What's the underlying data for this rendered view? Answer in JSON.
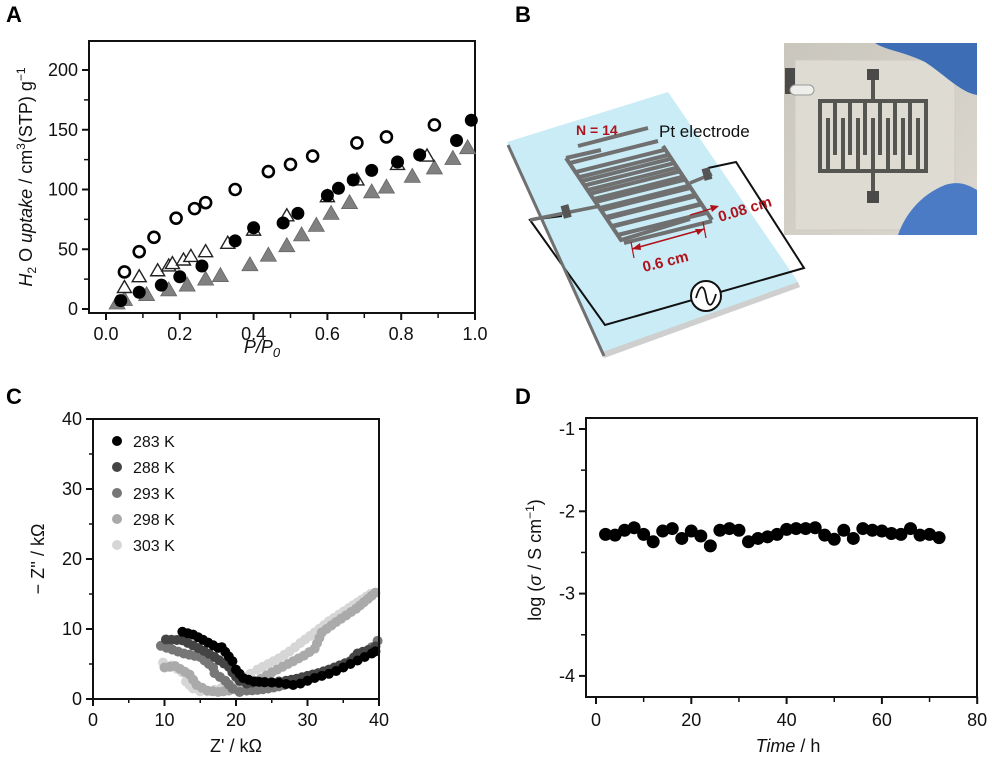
{
  "panels": {
    "A": {
      "letter": "A"
    },
    "B": {
      "letter": "B",
      "n_label": "N = 14",
      "electrode_label": "Pt electrode",
      "gap_label": "0.08 cm",
      "length_label": "0.6 cm",
      "accent_color": "#b0121b",
      "substrate_color": "#c9ecf6"
    },
    "C": {
      "letter": "C"
    },
    "D": {
      "letter": "D"
    }
  },
  "chart_data": [
    {
      "id": "A",
      "type": "scatter",
      "title": "",
      "xlabel": "P/P0",
      "ylabel": "H2O uptake / cm3(STP) g-1",
      "xlim": [
        -0.03,
        1.0
      ],
      "ylim": [
        -5,
        225
      ],
      "xticks": [
        "0.0",
        "0.2",
        "0.4",
        "0.6",
        "0.8",
        "1.0"
      ],
      "xtick_values": [
        0.0,
        0.2,
        0.4,
        0.6,
        0.8,
        1.0
      ],
      "yticks": [
        "0",
        "50",
        "100",
        "150",
        "200"
      ],
      "ytick_values": [
        0,
        50,
        100,
        150,
        200
      ],
      "grid": false,
      "series": [
        {
          "name": "open-circle",
          "marker": "circle-open",
          "color": "#000000",
          "x": [
            0.05,
            0.09,
            0.13,
            0.19,
            0.24,
            0.27,
            0.35,
            0.44,
            0.5,
            0.56,
            0.68,
            0.76,
            0.89
          ],
          "y": [
            31,
            48,
            60,
            76,
            84,
            89,
            100,
            115,
            121,
            128,
            139,
            144,
            154
          ]
        },
        {
          "name": "filled-circle",
          "marker": "circle-filled",
          "color": "#000000",
          "x": [
            0.04,
            0.09,
            0.15,
            0.2,
            0.26,
            0.35,
            0.4,
            0.48,
            0.52,
            0.6,
            0.63,
            0.67,
            0.72,
            0.79,
            0.85,
            0.95,
            0.99
          ],
          "y": [
            7,
            14,
            20,
            27,
            36,
            57,
            68,
            72,
            80,
            95,
            101,
            108,
            116,
            123,
            129,
            141,
            158
          ]
        },
        {
          "name": "open-triangle",
          "marker": "triangle-open",
          "color": "#000000",
          "x": [
            0.05,
            0.09,
            0.14,
            0.17,
            0.18,
            0.21,
            0.23,
            0.27,
            0.33,
            0.4,
            0.49,
            0.6,
            0.68,
            0.79,
            0.87
          ],
          "y": [
            18,
            27,
            32,
            36,
            38,
            41,
            44,
            48,
            55,
            66,
            78,
            94,
            108,
            121,
            128
          ]
        },
        {
          "name": "filled-triangle",
          "marker": "triangle-filled",
          "color": "#808080",
          "x": [
            0.03,
            0.05,
            0.11,
            0.17,
            0.22,
            0.27,
            0.31,
            0.39,
            0.44,
            0.49,
            0.53,
            0.57,
            0.61,
            0.66,
            0.72,
            0.76,
            0.83,
            0.89,
            0.94,
            0.98
          ],
          "y": [
            5,
            8,
            12,
            16,
            20,
            25,
            28,
            37,
            45,
            53,
            62,
            70,
            80,
            89,
            98,
            102,
            111,
            118,
            126,
            135
          ]
        }
      ]
    },
    {
      "id": "C",
      "type": "scatter",
      "title": "",
      "xlabel": "Z' / kΩ",
      "ylabel": "− Z'' / kΩ",
      "xlim": [
        0,
        40
      ],
      "ylim": [
        0,
        40
      ],
      "xticks": [
        "0",
        "10",
        "20",
        "30",
        "40"
      ],
      "xtick_values": [
        0,
        10,
        20,
        30,
        40
      ],
      "yticks": [
        "0",
        "10",
        "20",
        "30",
        "40"
      ],
      "ytick_values": [
        0,
        10,
        20,
        30,
        40
      ],
      "grid": false,
      "legend": "top-left",
      "series": [
        {
          "name": "283 K",
          "color": "#000000",
          "x": [
            12.5,
            14.0,
            17.5,
            18.0,
            19.5,
            20.0,
            21.0,
            22.5,
            24.0,
            26.0,
            28.0,
            29.0,
            30.0,
            31.0,
            32.0,
            33.0,
            34.0,
            35.0,
            36.0,
            37.0,
            38.0,
            39.0,
            39.5
          ],
          "y": [
            9.6,
            9.2,
            7.3,
            7.4,
            5.4,
            4.2,
            3.0,
            2.5,
            2.4,
            2.3,
            2.0,
            2.2,
            2.6,
            3.0,
            3.3,
            3.6,
            4.0,
            4.5,
            5.0,
            5.5,
            6.0,
            6.5,
            6.8
          ]
        },
        {
          "name": "288 K",
          "color": "#444444",
          "x": [
            10.2,
            12.5,
            15.5,
            17.0,
            19.0,
            19.5,
            20.5,
            21.5,
            23.0,
            25.0,
            27.0,
            28.5,
            30.0,
            31.5,
            33.0,
            34.5,
            36.0,
            37.0,
            38.5,
            39.5
          ],
          "y": [
            8.5,
            8.4,
            6.9,
            6.0,
            4.6,
            3.8,
            2.6,
            2.2,
            2.5,
            2.4,
            2.6,
            2.9,
            3.3,
            3.7,
            4.2,
            4.8,
            5.4,
            6.5,
            7.0,
            7.5
          ]
        },
        {
          "name": "293 K",
          "color": "#777777",
          "x": [
            9.5,
            12.7,
            15.0,
            16.8,
            17.0,
            18.5,
            19.5,
            20.5,
            21.5,
            23.0,
            24.5,
            26.0,
            27.5,
            29.0,
            30.5,
            32.0,
            33.5,
            35.0,
            36.5,
            38.0,
            39.0,
            39.8
          ],
          "y": [
            7.6,
            6.5,
            6.0,
            4.5,
            3.7,
            2.6,
            1.5,
            1.0,
            1.2,
            1.3,
            1.5,
            1.8,
            2.2,
            2.6,
            3.0,
            3.5,
            4.1,
            4.8,
            5.5,
            6.3,
            7.4,
            8.3
          ]
        },
        {
          "name": "298 K",
          "color": "#aaaaaa",
          "x": [
            10.0,
            11.5,
            13.5,
            14.5,
            16.0,
            17.5,
            19.0,
            20.5,
            22.0,
            23.5,
            25.0,
            26.5,
            28.0,
            29.5,
            31.0,
            32.0,
            34.0,
            36.8,
            39.5
          ],
          "y": [
            4.5,
            4.7,
            3.5,
            2.0,
            1.2,
            1.0,
            1.2,
            1.6,
            2.2,
            2.9,
            3.8,
            4.6,
            5.4,
            6.2,
            7.2,
            9.5,
            11.0,
            12.9,
            15.2
          ]
        },
        {
          "name": "303 K",
          "color": "#d6d6d6",
          "x": [
            9.8,
            11.0,
            12.5,
            13.0,
            14.0,
            15.0,
            16.0,
            17.0,
            18.0,
            19.0,
            20.0,
            21.0,
            22.0,
            23.0,
            24.5,
            26.0,
            27.5,
            29.0,
            31.0,
            33.0,
            35.8,
            38.8
          ],
          "y": [
            5.2,
            4.8,
            3.8,
            2.5,
            1.5,
            1.1,
            1.1,
            1.3,
            1.6,
            2.0,
            2.5,
            3.0,
            3.6,
            4.2,
            5.0,
            5.8,
            6.8,
            8.0,
            9.5,
            11.1,
            13.0,
            15.0
          ]
        }
      ]
    },
    {
      "id": "D",
      "type": "scatter",
      "title": "",
      "xlabel": "Time / h",
      "ylabel": "log (σ / S cm−1)",
      "xlim": [
        -2,
        80
      ],
      "ylim": [
        -4.25,
        -0.88
      ],
      "xticks": [
        "0",
        "20",
        "40",
        "60",
        "80"
      ],
      "xtick_values": [
        0,
        20,
        40,
        60,
        80
      ],
      "yticks": [
        "-1",
        "-2",
        "-3",
        "-4"
      ],
      "ytick_values": [
        -1,
        -2,
        -3,
        -4
      ],
      "grid": false,
      "series": [
        {
          "name": "conductivity",
          "color": "#000000",
          "x": [
            2,
            4,
            6,
            8,
            10,
            12,
            14,
            16,
            18,
            20,
            22,
            24,
            26,
            28,
            30,
            32,
            34,
            36,
            38,
            40,
            42,
            44,
            46,
            48,
            50,
            52,
            54,
            56,
            58,
            60,
            62,
            64,
            66,
            68,
            70,
            72
          ],
          "y": [
            -2.28,
            -2.29,
            -2.23,
            -2.2,
            -2.28,
            -2.37,
            -2.24,
            -2.21,
            -2.33,
            -2.24,
            -2.3,
            -2.42,
            -2.23,
            -2.21,
            -2.23,
            -2.37,
            -2.33,
            -2.31,
            -2.28,
            -2.22,
            -2.21,
            -2.21,
            -2.2,
            -2.29,
            -2.34,
            -2.23,
            -2.33,
            -2.21,
            -2.23,
            -2.24,
            -2.27,
            -2.28,
            -2.21,
            -2.29,
            -2.28,
            -2.32
          ]
        }
      ]
    }
  ]
}
